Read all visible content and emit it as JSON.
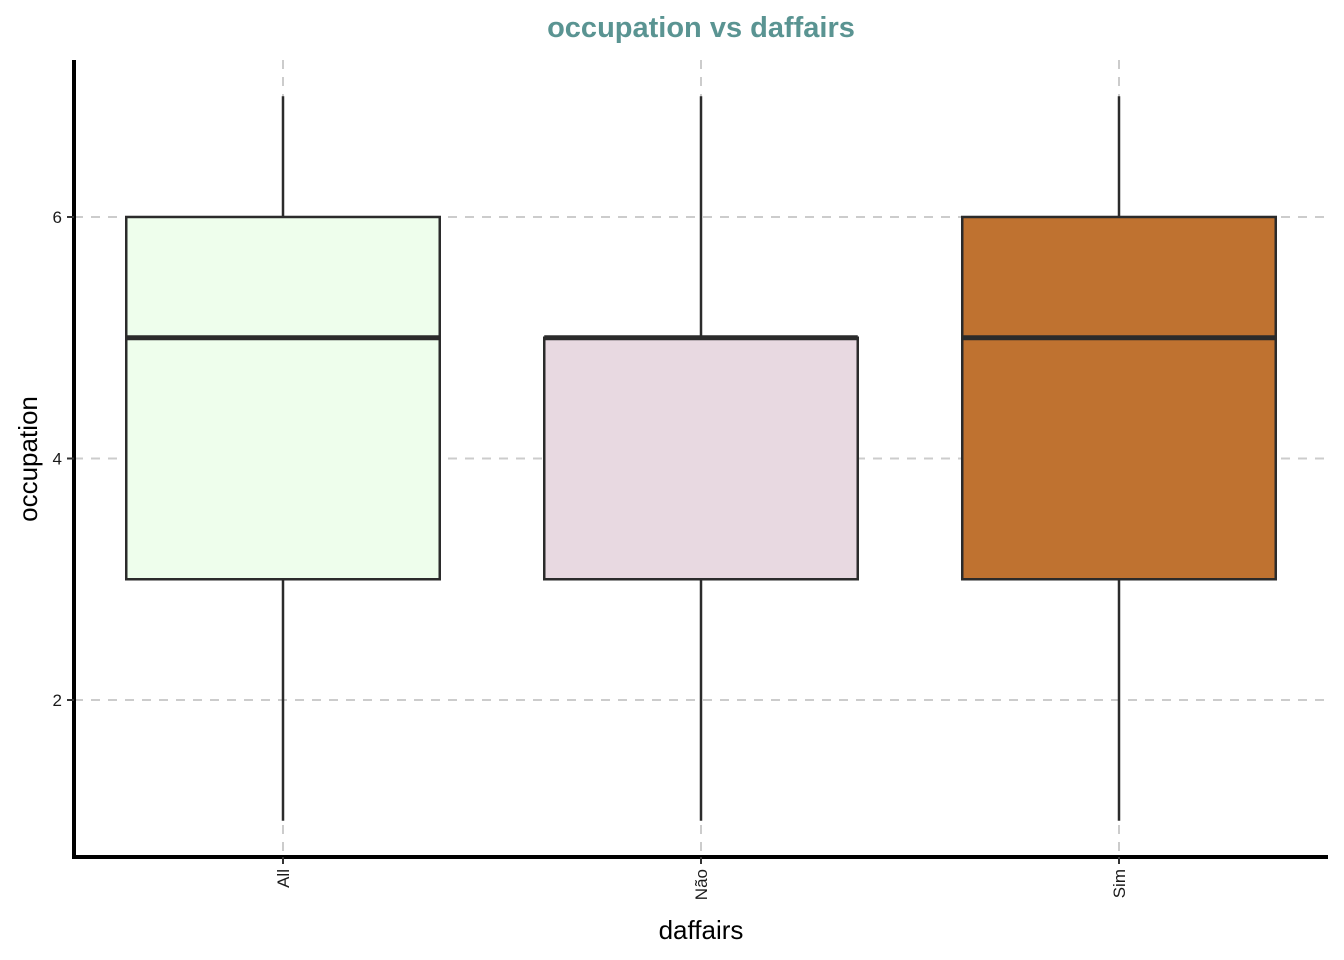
{
  "chart_data": {
    "type": "boxplot",
    "title": "occupation vs daffairs",
    "xlabel": "daffairs",
    "ylabel": "occupation",
    "categories": [
      "All",
      "Não",
      "Sim"
    ],
    "boxes": [
      {
        "category": "All",
        "min": 1,
        "q1": 3,
        "median": 5,
        "q3": 6,
        "max": 7,
        "fill": "#EEFEEC"
      },
      {
        "category": "Não",
        "min": 1,
        "q1": 3,
        "median": 5,
        "q3": 5,
        "max": 7,
        "fill": "#E8D9E1"
      },
      {
        "category": "Sim",
        "min": 1,
        "q1": 3,
        "median": 5,
        "q3": 6,
        "max": 7,
        "fill": "#BF7230"
      }
    ],
    "yticks": [
      2,
      4,
      6
    ],
    "ylim": [
      0.7,
      7.3
    ],
    "grid": true,
    "title_color": "#5A9492"
  }
}
